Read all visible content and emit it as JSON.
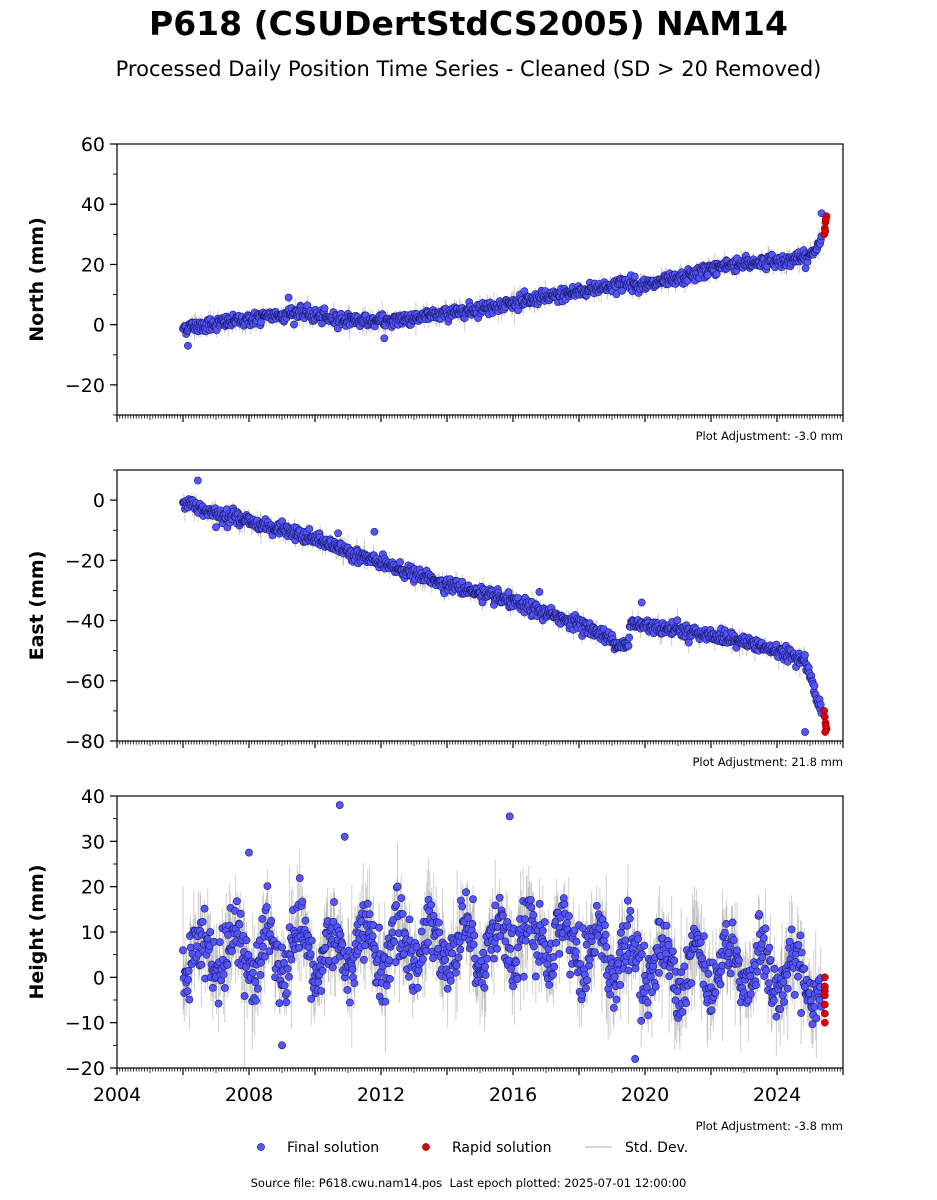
{
  "title": "P618 (CSUDertStdCS2005) NAM14",
  "subtitle": "Processed Daily Position Time Series - Cleaned (SD > 20 Removed)",
  "chart_data": [
    {
      "type": "scatter",
      "ylabel": "North (mm)",
      "ylim": [
        -30,
        60
      ],
      "yticks": [
        -20,
        0,
        20,
        40,
        60
      ],
      "xlim": [
        2004,
        2026
      ],
      "adjustment": "Plot Adjustment: -3.0 mm",
      "trend": [
        [
          2006.0,
          -1
        ],
        [
          2007.5,
          1
        ],
        [
          2009.5,
          4
        ],
        [
          2010.5,
          2
        ],
        [
          2012.0,
          1
        ],
        [
          2013.5,
          3
        ],
        [
          2016.0,
          7
        ],
        [
          2017.5,
          10
        ],
        [
          2019.5,
          14
        ],
        [
          2020.0,
          13
        ],
        [
          2021.0,
          15
        ],
        [
          2022.5,
          20
        ],
        [
          2024.0,
          21
        ],
        [
          2024.9,
          22
        ],
        [
          2025.2,
          25
        ],
        [
          2025.4,
          32
        ]
      ],
      "noise": 1.8,
      "noise_sd": 1.5,
      "outliers": [
        [
          2006.15,
          -7
        ],
        [
          2009.2,
          9
        ],
        [
          2012.1,
          -4.5
        ],
        [
          2025.35,
          37
        ],
        [
          2021.9,
          16.5
        ]
      ],
      "rapid": [
        [
          2025.43,
          30
        ],
        [
          2025.45,
          32
        ],
        [
          2025.47,
          34
        ],
        [
          2025.5,
          36
        ],
        [
          2025.46,
          31
        ],
        [
          2025.48,
          35
        ]
      ]
    },
    {
      "type": "scatter",
      "ylabel": "East (mm)",
      "ylim": [
        -80,
        10
      ],
      "yticks": [
        -80,
        -60,
        -40,
        -20,
        0
      ],
      "xlim": [
        2004,
        2026
      ],
      "adjustment": "Plot Adjustment: 21.8 mm",
      "trend": [
        [
          2006.0,
          -1
        ],
        [
          2008.0,
          -7
        ],
        [
          2010.0,
          -13
        ],
        [
          2012.0,
          -21
        ],
        [
          2014.0,
          -28
        ],
        [
          2016.0,
          -34
        ],
        [
          2018.0,
          -41
        ],
        [
          2019.5,
          -49
        ],
        [
          2019.55,
          -41
        ],
        [
          2021.0,
          -43
        ],
        [
          2023.0,
          -47
        ],
        [
          2024.5,
          -52
        ],
        [
          2024.9,
          -54
        ],
        [
          2025.1,
          -62
        ],
        [
          2025.3,
          -68
        ],
        [
          2025.45,
          -74
        ]
      ],
      "noise": 1.8,
      "noise_sd": 1.5,
      "outliers": [
        [
          2006.45,
          6.5
        ],
        [
          2024.85,
          -77
        ],
        [
          2011.8,
          -10.5
        ],
        [
          2010.7,
          -11
        ],
        [
          2016.8,
          -30.5
        ],
        [
          2019.9,
          -34
        ],
        [
          2007.0,
          -9
        ]
      ],
      "rapid": [
        [
          2025.43,
          -70
        ],
        [
          2025.45,
          -72
        ],
        [
          2025.47,
          -74
        ],
        [
          2025.5,
          -76
        ],
        [
          2025.48,
          -75
        ],
        [
          2025.46,
          -77
        ]
      ]
    },
    {
      "type": "scatter",
      "ylabel": "Height (mm)",
      "ylim": [
        -20,
        40
      ],
      "yticks": [
        -20,
        -10,
        0,
        10,
        20,
        30,
        40
      ],
      "xlim": [
        2004,
        2026
      ],
      "x_tick_labels": [
        "2004",
        "2008",
        "2012",
        "2016",
        "2020",
        "2024"
      ],
      "adjustment": "Plot Adjustment: -3.8 mm",
      "trend": [
        [
          2006.0,
          5
        ],
        [
          2010.0,
          5
        ],
        [
          2013.0,
          7
        ],
        [
          2016.0,
          8
        ],
        [
          2018.0,
          7
        ],
        [
          2020.0,
          3
        ],
        [
          2022.0,
          3
        ],
        [
          2024.0,
          1
        ],
        [
          2025.3,
          -1
        ]
      ],
      "noise": 6,
      "noise_sd": 4.5,
      "seasonal": 5,
      "outliers": [
        [
          2010.75,
          38
        ],
        [
          2010.9,
          31
        ],
        [
          2015.9,
          35.5
        ],
        [
          2019.7,
          -18
        ],
        [
          2008.0,
          27.5
        ],
        [
          2009.0,
          -15
        ]
      ],
      "rapid": [
        [
          2025.45,
          0
        ],
        [
          2025.45,
          -2
        ],
        [
          2025.45,
          -4
        ],
        [
          2025.45,
          -6
        ],
        [
          2025.45,
          -8
        ],
        [
          2025.45,
          -10
        ],
        [
          2025.45,
          -3
        ]
      ]
    }
  ],
  "legend": {
    "final": "Final solution",
    "rapid": "Rapid solution",
    "std": "Std. Dev."
  },
  "colors": {
    "final_fill": "#5555ff",
    "final_edge": "#1a1a66",
    "rapid_fill": "#e00000",
    "std_line": "#8a8a8a"
  },
  "footer": {
    "source": "Source file: P618.cwu.nam14.pos",
    "last_epoch": "Last epoch plotted: 2025-07-01 12:00:00"
  }
}
